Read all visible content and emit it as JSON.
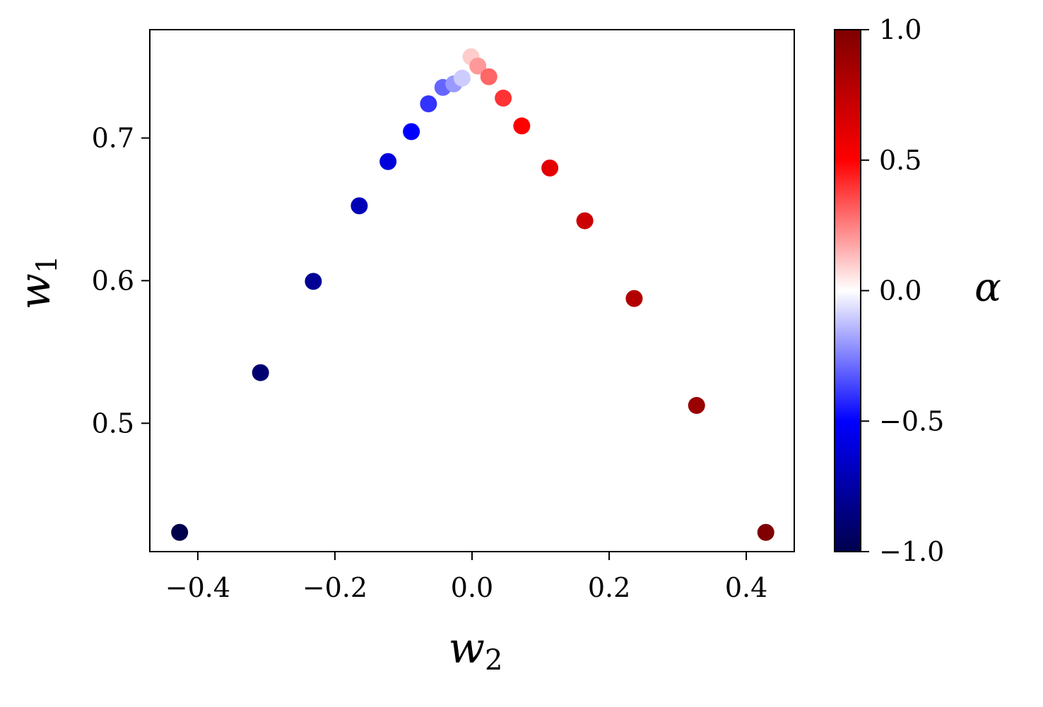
{
  "chart_data": {
    "type": "scatter",
    "xlabel": "w",
    "xlabel_sub": "2",
    "ylabel": "w",
    "ylabel_sub": "1",
    "xlim": [
      -0.47,
      0.47
    ],
    "ylim": [
      0.41,
      0.776
    ],
    "xticks": [
      {
        "value": -0.4,
        "label": "−0.4"
      },
      {
        "value": -0.2,
        "label": "−0.2"
      },
      {
        "value": 0.0,
        "label": "0.0"
      },
      {
        "value": 0.2,
        "label": "0.2"
      },
      {
        "value": 0.4,
        "label": "0.4"
      }
    ],
    "yticks": [
      {
        "value": 0.5,
        "label": "0.5"
      },
      {
        "value": 0.6,
        "label": "0.6"
      },
      {
        "value": 0.7,
        "label": "0.7"
      }
    ],
    "grid": false,
    "colorbar": {
      "label": "α",
      "range": [
        -1.0,
        1.0
      ],
      "colormap": "seismic",
      "colormap_stops": [
        "#00004c",
        "#0000ff",
        "#ffffff",
        "#ff0000",
        "#7f0000"
      ],
      "ticks": [
        {
          "value": 1.0,
          "label": "1.0"
        },
        {
          "value": 0.5,
          "label": "0.5"
        },
        {
          "value": 0.0,
          "label": "0.0"
        },
        {
          "value": -0.5,
          "label": "−0.5"
        },
        {
          "value": -1.0,
          "label": "−1.0"
        }
      ]
    },
    "points": [
      {
        "x": -0.4265,
        "y": 0.4235,
        "alpha": -1.0
      },
      {
        "x": -0.3085,
        "y": 0.5355,
        "alpha": -0.9
      },
      {
        "x": -0.2315,
        "y": 0.5995,
        "alpha": -0.8
      },
      {
        "x": -0.1645,
        "y": 0.6525,
        "alpha": -0.7
      },
      {
        "x": -0.1225,
        "y": 0.6835,
        "alpha": -0.6
      },
      {
        "x": -0.0885,
        "y": 0.7045,
        "alpha": -0.5
      },
      {
        "x": -0.0635,
        "y": 0.724,
        "alpha": -0.4
      },
      {
        "x": -0.0425,
        "y": 0.7355,
        "alpha": -0.3
      },
      {
        "x": -0.0265,
        "y": 0.738,
        "alpha": -0.2
      },
      {
        "x": -0.0145,
        "y": 0.742,
        "alpha": -0.1
      },
      {
        "x": -0.0015,
        "y": 0.757,
        "alpha": 0.1
      },
      {
        "x": 0.0085,
        "y": 0.7505,
        "alpha": 0.2
      },
      {
        "x": 0.0245,
        "y": 0.743,
        "alpha": 0.3
      },
      {
        "x": 0.0455,
        "y": 0.728,
        "alpha": 0.4
      },
      {
        "x": 0.0725,
        "y": 0.7085,
        "alpha": 0.5
      },
      {
        "x": 0.1135,
        "y": 0.679,
        "alpha": 0.6
      },
      {
        "x": 0.1645,
        "y": 0.642,
        "alpha": 0.7
      },
      {
        "x": 0.2365,
        "y": 0.5875,
        "alpha": 0.8
      },
      {
        "x": 0.3275,
        "y": 0.5125,
        "alpha": 0.9
      },
      {
        "x": 0.4285,
        "y": 0.4235,
        "alpha": 1.0
      }
    ]
  }
}
